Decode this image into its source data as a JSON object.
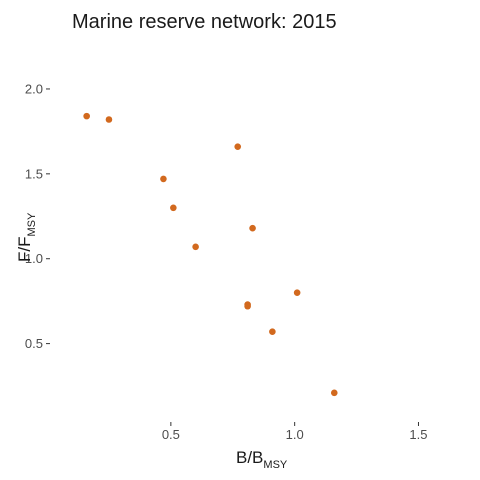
{
  "chart_data": {
    "type": "scatter",
    "title": "Marine reserve network: 2015",
    "xlabel": "B/B",
    "xlabel_sub": "MSY",
    "ylabel": "F/F",
    "ylabel_sub": "MSY",
    "xlim": [
      0.02,
      1.7
    ],
    "ylim": [
      0.05,
      2.2
    ],
    "x_ticks": [
      {
        "value": 0.5,
        "label": "0.5"
      },
      {
        "value": 1.0,
        "label": "1.0"
      },
      {
        "value": 1.5,
        "label": "1.5"
      }
    ],
    "y_ticks": [
      {
        "value": 0.5,
        "label": "0.5"
      },
      {
        "value": 1.0,
        "label": "1.0"
      },
      {
        "value": 1.5,
        "label": "1.5"
      },
      {
        "value": 2.0,
        "label": "2.0"
      }
    ],
    "grid": false,
    "point_color": "#D2691E",
    "points": [
      {
        "x": 0.16,
        "y": 1.84
      },
      {
        "x": 0.25,
        "y": 1.82
      },
      {
        "x": 0.77,
        "y": 1.66
      },
      {
        "x": 0.47,
        "y": 1.47
      },
      {
        "x": 0.51,
        "y": 1.3
      },
      {
        "x": 0.83,
        "y": 1.18
      },
      {
        "x": 0.6,
        "y": 1.07
      },
      {
        "x": 1.01,
        "y": 0.8
      },
      {
        "x": 0.81,
        "y": 0.73
      },
      {
        "x": 0.81,
        "y": 0.72
      },
      {
        "x": 0.91,
        "y": 0.57
      },
      {
        "x": 1.16,
        "y": 0.21
      }
    ]
  }
}
